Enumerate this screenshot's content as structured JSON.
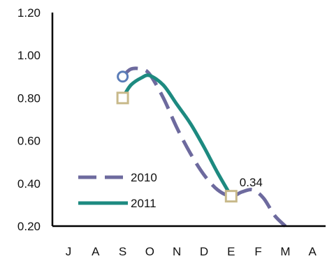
{
  "chart_data": {
    "type": "line",
    "title": "",
    "xlabel": "",
    "ylabel": "",
    "categories": [
      "J",
      "A",
      "S",
      "O",
      "N",
      "D",
      "E",
      "F",
      "M",
      "A"
    ],
    "yticks": [
      "0.20",
      "0.40",
      "0.60",
      "0.80",
      "1.00",
      "1.20"
    ],
    "ylim": [
      0.2,
      1.2
    ],
    "grid": false,
    "legend": "bottom-left",
    "series": [
      {
        "name": "2010",
        "style": "dashed",
        "color": "#6d6a9e",
        "x": [
          2.0,
          2.3,
          2.7,
          3.0,
          3.5,
          4.0,
          4.5,
          5.0,
          5.5,
          6.0,
          6.4,
          6.8,
          7.2,
          7.6,
          8.0
        ],
        "y": [
          0.9,
          0.935,
          0.935,
          0.91,
          0.8,
          0.66,
          0.54,
          0.44,
          0.37,
          0.34,
          0.36,
          0.37,
          0.33,
          0.25,
          0.2
        ]
      },
      {
        "name": "2011",
        "style": "solid",
        "color": "#1d8a80",
        "x": [
          2.0,
          2.3,
          2.7,
          3.0,
          3.5,
          4.0,
          4.5,
          5.0,
          5.5,
          6.0
        ],
        "y": [
          0.8,
          0.86,
          0.895,
          0.905,
          0.86,
          0.77,
          0.68,
          0.57,
          0.45,
          0.34
        ]
      }
    ],
    "markers": [
      {
        "series": "2010",
        "shape": "circle",
        "x": 2.0,
        "y": 0.9,
        "color": "#5b7db8"
      },
      {
        "series": "2011",
        "shape": "square",
        "x": 2.0,
        "y": 0.8,
        "color": "#c8b98a"
      },
      {
        "series": "2011",
        "shape": "square",
        "x": 6.0,
        "y": 0.34,
        "color": "#c8b98a"
      }
    ],
    "annotations": [
      {
        "text": "0.34",
        "x": 6.0,
        "y": 0.34
      }
    ]
  }
}
